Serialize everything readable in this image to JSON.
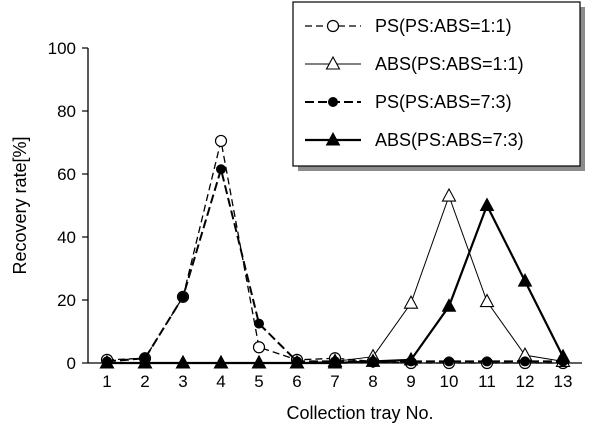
{
  "chart_data": {
    "type": "line",
    "title": "",
    "xlabel": "Collection tray No.",
    "ylabel": "Recovery rate[%]",
    "ylim": [
      0,
      100
    ],
    "xlim": [
      0.5,
      13.5
    ],
    "yticks": [
      0,
      20,
      40,
      60,
      80,
      100
    ],
    "x": [
      1,
      2,
      3,
      4,
      5,
      6,
      7,
      8,
      9,
      10,
      11,
      12,
      13
    ],
    "grid": false,
    "legend_position": "top-right",
    "series": [
      {
        "name": "PS(PS:ABS=1:1)",
        "marker": "open-circle",
        "line": "dashed-thin",
        "values": [
          1,
          1.5,
          21,
          70.5,
          5,
          1,
          1.5,
          0.5,
          0,
          0,
          0,
          0,
          0
        ]
      },
      {
        "name": "ABS(PS:ABS=1:1)",
        "marker": "open-triangle",
        "line": "solid-thin",
        "values": [
          0,
          0,
          0,
          0,
          0,
          0,
          0.5,
          2,
          19,
          53,
          19.5,
          2.5,
          0.5
        ]
      },
      {
        "name": "PS(PS:ABS=7:3)",
        "marker": "filled-circle",
        "line": "dashed-thick",
        "values": [
          0.5,
          1.5,
          21,
          61.5,
          12.5,
          0.5,
          0.5,
          0.5,
          0.5,
          0.5,
          0.5,
          0.5,
          0.5
        ]
      },
      {
        "name": "ABS(PS:ABS=7:3)",
        "marker": "filled-triangle",
        "line": "solid-thick",
        "values": [
          0,
          0,
          0,
          0,
          0,
          0,
          0,
          0.5,
          1,
          18,
          50,
          26,
          2
        ]
      }
    ]
  }
}
